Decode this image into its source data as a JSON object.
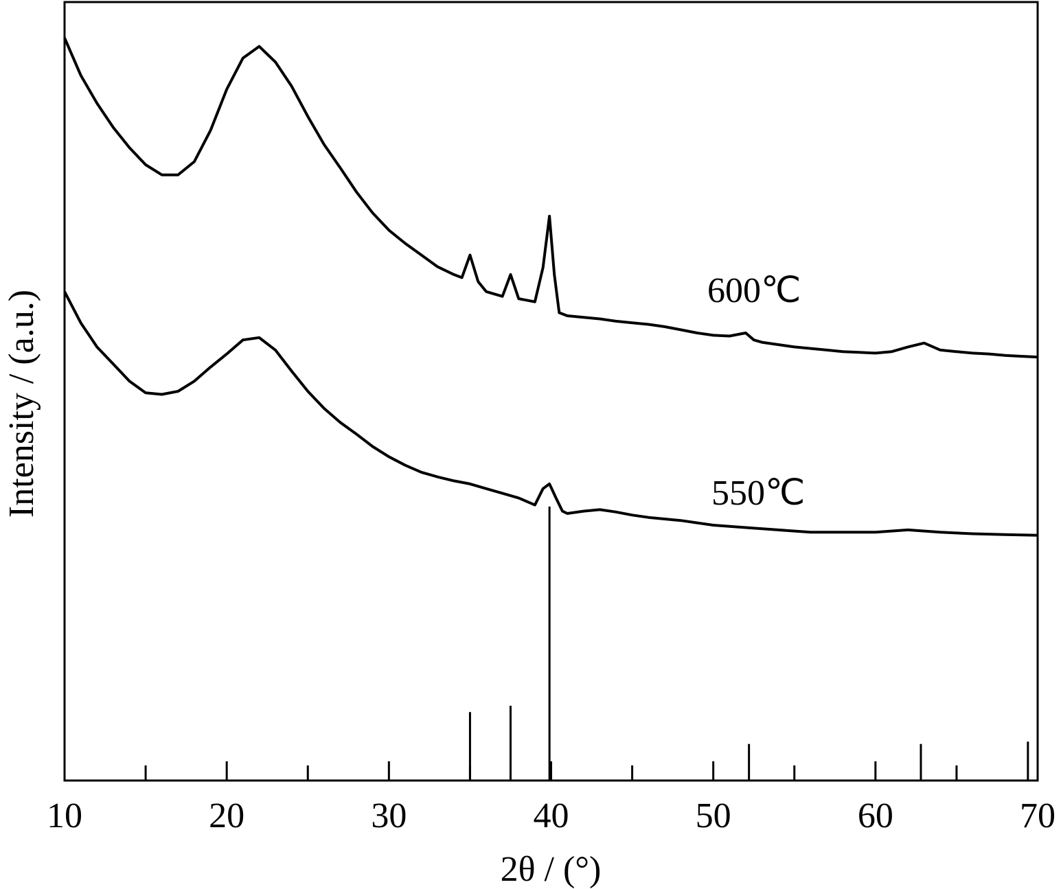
{
  "chart_data": {
    "type": "line",
    "xlabel": "2θ / (°)",
    "ylabel": "Intensity / (a.u.)",
    "xlim": [
      10,
      70
    ],
    "ylim": [
      0,
      100
    ],
    "xticks": [
      10,
      20,
      30,
      40,
      50,
      60,
      70
    ],
    "xticks_minor": [
      15,
      25,
      35,
      45,
      55,
      65
    ],
    "series": [
      {
        "name": "600℃",
        "color": "#000000",
        "style": "line",
        "x": [
          10,
          11,
          12,
          13,
          14,
          15,
          16,
          17,
          18,
          19,
          20,
          21,
          22,
          23,
          24,
          25,
          26,
          27,
          28,
          29,
          30,
          31,
          32,
          33,
          34,
          34.5,
          35,
          35.5,
          36,
          37,
          37.5,
          38,
          39,
          39.5,
          39.9,
          40.2,
          40.5,
          41,
          42,
          43,
          44,
          45,
          46,
          47,
          48,
          49,
          50,
          51,
          52,
          52.5,
          53,
          54,
          55,
          56,
          57,
          58,
          59,
          60,
          61,
          62,
          63,
          64,
          65,
          66,
          67,
          68,
          69,
          70
        ],
        "values": [
          95.4,
          90.6,
          87.0,
          83.9,
          81.3,
          79.1,
          77.8,
          77.8,
          79.5,
          83.5,
          88.8,
          92.8,
          94.3,
          92.3,
          89.2,
          85.3,
          81.7,
          78.7,
          75.6,
          72.9,
          70.7,
          69.0,
          67.5,
          66.0,
          65.0,
          64.6,
          67.5,
          64.1,
          62.8,
          62.2,
          65.0,
          61.9,
          61.5,
          65.9,
          72.5,
          65.0,
          60.1,
          59.7,
          59.5,
          59.3,
          59.0,
          58.8,
          58.6,
          58.3,
          57.9,
          57.5,
          57.2,
          57.1,
          57.5,
          56.6,
          56.3,
          56.0,
          55.7,
          55.5,
          55.3,
          55.1,
          55.0,
          54.9,
          55.1,
          55.7,
          56.2,
          55.3,
          55.1,
          54.9,
          54.8,
          54.6,
          54.5,
          54.4
        ]
      },
      {
        "name": "550℃",
        "color": "#000000",
        "style": "line",
        "x": [
          10,
          11,
          12,
          13,
          14,
          15,
          16,
          17,
          18,
          19,
          20,
          21,
          22,
          23,
          24,
          25,
          26,
          27,
          28,
          29,
          30,
          31,
          32,
          33,
          34,
          35,
          36,
          37,
          38,
          39,
          39.5,
          39.9,
          40.3,
          40.7,
          41,
          42,
          43,
          44,
          45,
          46,
          47,
          48,
          49,
          50,
          52,
          54,
          56,
          58,
          60,
          62,
          64,
          66,
          68,
          70
        ],
        "values": [
          62.8,
          58.8,
          55.7,
          53.5,
          51.3,
          49.8,
          49.6,
          50.0,
          51.3,
          53.1,
          54.8,
          56.6,
          56.9,
          55.3,
          52.6,
          50.0,
          47.8,
          46.0,
          44.5,
          42.9,
          41.6,
          40.5,
          39.6,
          39.0,
          38.5,
          38.1,
          37.5,
          36.9,
          36.3,
          35.4,
          37.5,
          38.1,
          36.3,
          34.6,
          34.3,
          34.6,
          34.8,
          34.5,
          34.1,
          33.8,
          33.6,
          33.4,
          33.1,
          32.8,
          32.5,
          32.2,
          31.9,
          31.9,
          31.9,
          32.2,
          31.9,
          31.7,
          31.6,
          31.5
        ]
      },
      {
        "color": "#000000",
        "style": "stick",
        "x": [
          35,
          37.5,
          39.9,
          52.2,
          62.8,
          69.4
        ],
        "values": [
          8.8,
          9.6,
          35.2,
          4.7,
          4.7,
          5.0
        ]
      }
    ]
  }
}
